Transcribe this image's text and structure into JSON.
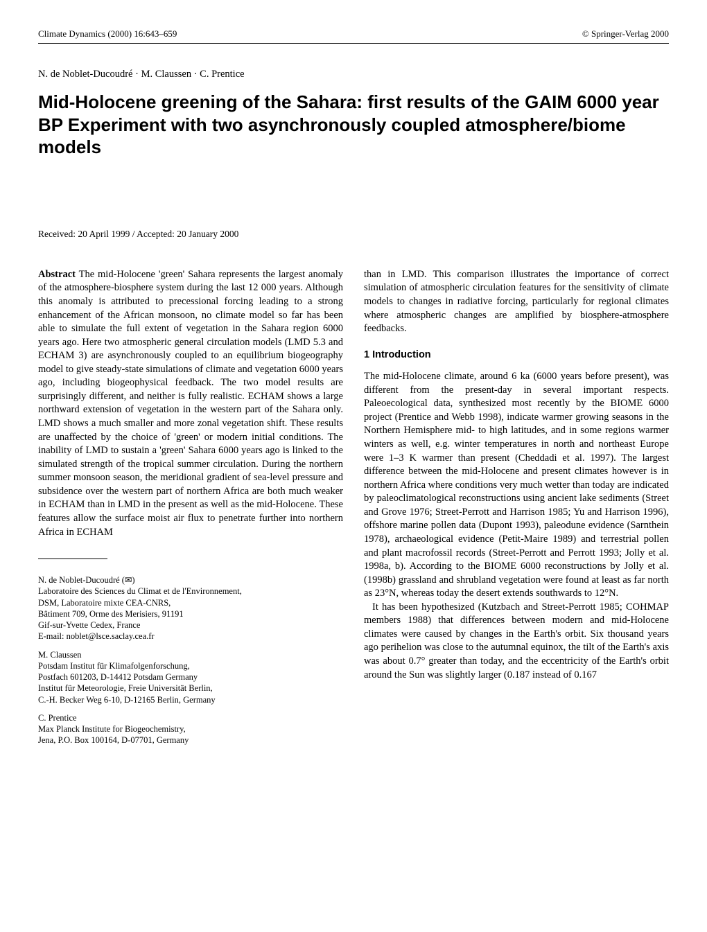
{
  "header": {
    "journal": "Climate Dynamics (2000) 16:643–659",
    "copyright": "© Springer-Verlag 2000"
  },
  "authors_line": "N. de Noblet-Ducoudré · M. Claussen · C. Prentice",
  "title": "Mid-Holocene greening of the Sahara: first results of the GAIM 6000 year BP Experiment with two asynchronously coupled atmosphere/biome models",
  "received": "Received: 20 April 1999 / Accepted: 20 January 2000",
  "abstract_label": "Abstract",
  "abstract_text": " The mid-Holocene 'green' Sahara represents the largest anomaly of the atmosphere-biosphere system during the last 12 000 years. Although this anomaly is attributed to precessional forcing leading to a strong enhancement of the African monsoon, no climate model so far has been able to simulate the full extent of vegetation in the Sahara region 6000 years ago. Here two atmospheric general circulation models (LMD 5.3 and ECHAM 3) are asynchronously coupled to an equilibrium biogeography model to give steady-state simulations of climate and vegetation 6000 years ago, including biogeophysical feedback. The two model results are surprisingly different, and neither is fully realistic. ECHAM shows a large northward extension of vegetation in the western part of the Sahara only. LMD shows a much smaller and more zonal vegetation shift. These results are unaffected by the choice of 'green' or modern initial conditions. The inability of LMD to sustain a 'green' Sahara 6000 years ago is linked to the simulated strength of the tropical summer circulation. During the northern summer monsoon season, the meridional gradient of sea-level pressure and subsidence over the western part of northern Africa are both much weaker in ECHAM than in LMD in the present as well as the mid-Holocene. These features allow the surface moist air flux to penetrate further into northern Africa in ECHAM",
  "col2_top": "than in LMD. This comparison illustrates the importance of correct simulation of atmospheric circulation features for the sensitivity of climate models to changes in radiative forcing, particularly for regional climates where atmospheric changes are amplified by biosphere-atmosphere feedbacks.",
  "section1_heading": "1 Introduction",
  "intro_para1": "The mid-Holocene climate, around 6 ka (6000 years before present), was different from the present-day in several important respects. Paleoecological data, synthesized most recently by the BIOME 6000 project (Prentice and Webb 1998), indicate warmer growing seasons in the Northern Hemisphere mid- to high latitudes, and in some regions warmer winters as well, e.g. winter temperatures in north and northeast Europe were 1–3 K warmer than present (Cheddadi et al. 1997). The largest difference between the mid-Holocene and present climates however is in northern Africa where conditions very much wetter than today are indicated by paleoclimatological reconstructions using ancient lake sediments (Street and Grove 1976; Street-Perrott and Harrison 1985; Yu and Harrison 1996), offshore marine pollen data (Dupont 1993), paleodune evidence (Sarnthein 1978), archaeological evidence (Petit-Maire 1989) and terrestrial pollen and plant macrofossil records (Street-Perrott and Perrott 1993; Jolly et al. 1998a, b). According to the BIOME 6000 reconstructions by Jolly et al. (1998b) grassland and shrubland vegetation were found at least as far north as 23°N, whereas today the desert extends southwards to 12°N.",
  "intro_para2": "It has been hypothesized (Kutzbach and Street-Perrott 1985; COHMAP members 1988) that differences between modern and mid-Holocene climates were caused by changes in the Earth's orbit. Six thousand years ago perihelion was close to the autumnal equinox, the tilt of the Earth's axis was about 0.7° greater than today, and the eccentricity of the Earth's orbit around the Sun was slightly larger (0.187 instead of 0.167",
  "corr1": {
    "name": "N. de Noblet-Ducoudré (✉)",
    "l1": "Laboratoire des Sciences du Climat et de l'Environnement,",
    "l2": "DSM, Laboratoire mixte CEA-CNRS,",
    "l3": "Bâtiment 709, Orme des Merisiers, 91191",
    "l4": "Gif-sur-Yvette Cedex, France",
    "l5": "E-mail: noblet@lsce.saclay.cea.fr"
  },
  "corr2": {
    "name": "M. Claussen",
    "l1": "Potsdam Institut für Klimafolgenforschung,",
    "l2": "Postfach 601203, D-14412 Potsdam Germany",
    "l3": "Institut für Meteorologie, Freie Universität Berlin,",
    "l4": "C.-H. Becker Weg 6-10, D-12165 Berlin, Germany"
  },
  "corr3": {
    "name": "C. Prentice",
    "l1": "Max Planck Institute for Biogeochemistry,",
    "l2": "Jena, P.O. Box 100164, D-07701, Germany"
  }
}
